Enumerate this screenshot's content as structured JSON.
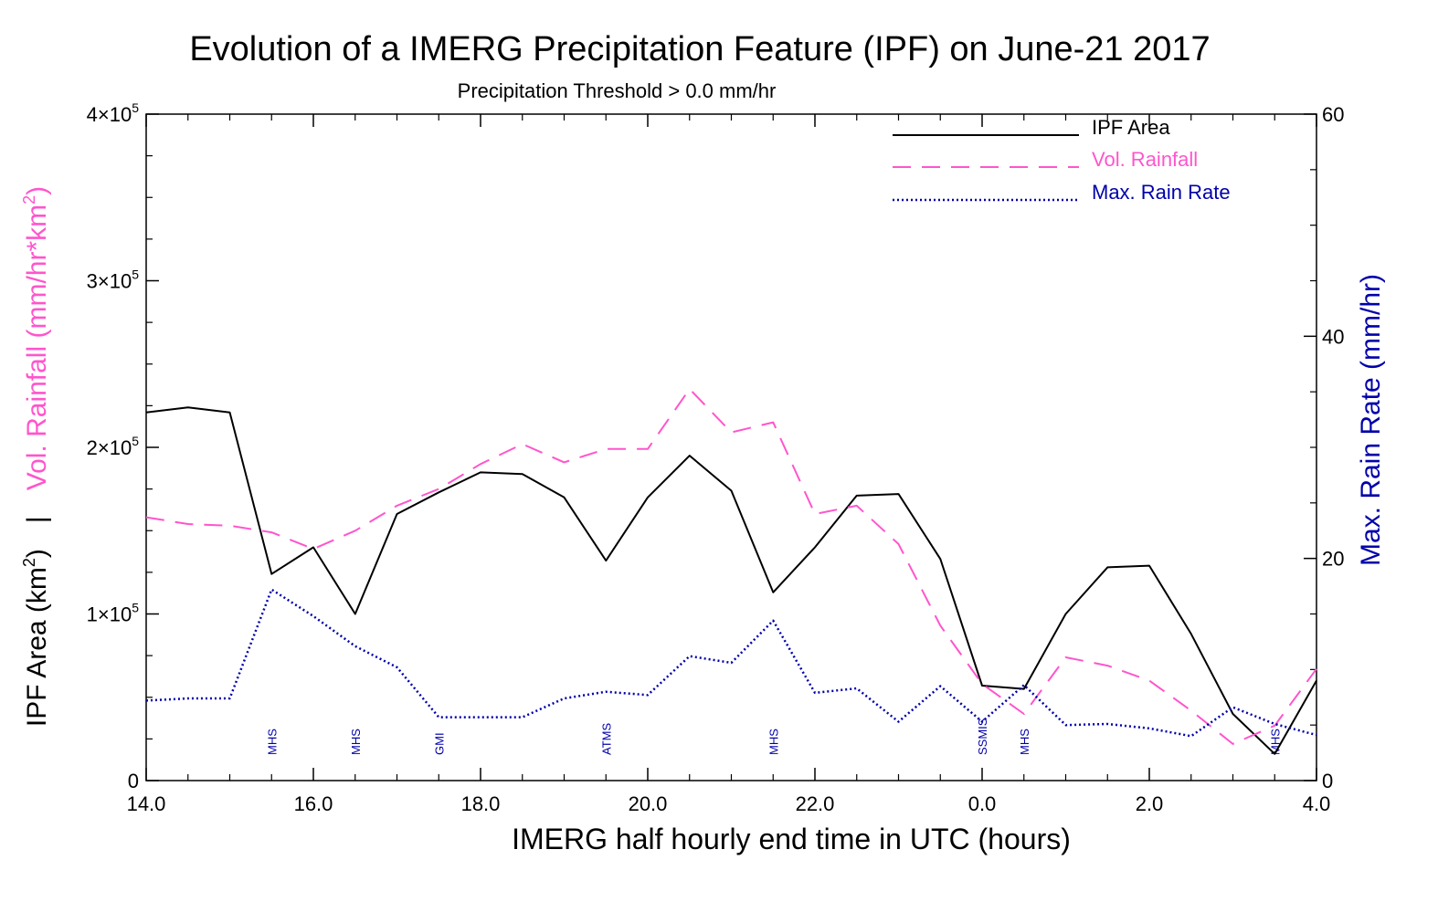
{
  "chart_data": {
    "type": "line",
    "title": "Evolution of a IMERG Precipitation Feature (IPF) on June-21 2017",
    "subtitle": "Precipitation Threshold > 0.0 mm/hr",
    "xlabel": "IMERG half hourly end time in UTC (hours)",
    "ylabel_left_part1": "IPF Area (km",
    "ylabel_left_part2": "Vol. Rainfall (mm/hr*km",
    "ylabel_left_sup": "2",
    "ylabel_left_close": ")",
    "ylabel_left_sep": "|",
    "ylabel_right": "Max. Rain Rate (mm/hr)",
    "x_tick_labels": [
      "14.0",
      "16.0",
      "18.0",
      "20.0",
      "22.0",
      "0.0",
      "2.0",
      "4.0"
    ],
    "x_ticks": [
      0,
      2,
      4,
      6,
      8,
      10,
      12,
      14
    ],
    "xlim": [
      0,
      14
    ],
    "ylim_left": [
      0,
      400000
    ],
    "ylim_right": [
      0,
      60
    ],
    "y_left_ticks": [
      {
        "value": 0,
        "label": "0",
        "exp": ""
      },
      {
        "value": 100000,
        "label": "1×10",
        "exp": "5"
      },
      {
        "value": 200000,
        "label": "2×10",
        "exp": "5"
      },
      {
        "value": 300000,
        "label": "3×10",
        "exp": "5"
      },
      {
        "value": 400000,
        "label": "4×10",
        "exp": "5"
      }
    ],
    "y_right_ticks": [
      {
        "value": 0,
        "label": "0"
      },
      {
        "value": 20,
        "label": "20"
      },
      {
        "value": 40,
        "label": "40"
      },
      {
        "value": 60,
        "label": "60"
      }
    ],
    "x": [
      0,
      0.5,
      1,
      1.5,
      2,
      2.5,
      3,
      3.5,
      4,
      4.5,
      5,
      5.5,
      6,
      6.5,
      7,
      7.5,
      8,
      8.5,
      9,
      9.5,
      10,
      10.5,
      11,
      11.5,
      12,
      12.5,
      13,
      13.5,
      14
    ],
    "series": [
      {
        "name": "IPF Area",
        "axis": "left",
        "color": "#000000",
        "dash": "solid",
        "values": [
          221000,
          224000,
          221000,
          124000,
          140000,
          100000,
          160000,
          173000,
          185000,
          184000,
          170000,
          132000,
          170000,
          195000,
          174000,
          113000,
          140000,
          171000,
          172000,
          133000,
          57000,
          55000,
          100000,
          128000,
          129000,
          88000,
          40000,
          16000,
          60000
        ]
      },
      {
        "name": "Vol. Rainfall",
        "axis": "left",
        "color": "#ff55cc",
        "dash": "dashed",
        "values": [
          158000,
          154000,
          153000,
          149000,
          139000,
          150000,
          165000,
          175000,
          190000,
          202000,
          191000,
          199000,
          199000,
          235000,
          209000,
          215000,
          160000,
          165000,
          142000,
          93000,
          58000,
          40000,
          74000,
          69000,
          60000,
          42000,
          22000,
          33000,
          67000
        ]
      },
      {
        "name": "Max. Rain Rate",
        "axis": "right",
        "color": "#0000aa",
        "dash": "dotted",
        "values": [
          7.2,
          7.4,
          7.4,
          17.2,
          14.8,
          12.1,
          10.2,
          5.7,
          5.7,
          5.7,
          7.4,
          8.0,
          7.7,
          11.2,
          10.6,
          14.4,
          7.9,
          8.3,
          5.3,
          8.5,
          5.3,
          8.6,
          5.0,
          5.1,
          4.7,
          4.0,
          6.6,
          5.1,
          4.1
        ]
      }
    ],
    "sensor_annotations": [
      {
        "x": 1.5,
        "label": "MHS"
      },
      {
        "x": 2.5,
        "label": "MHS"
      },
      {
        "x": 3.5,
        "label": "GMI"
      },
      {
        "x": 5.5,
        "label": "ATMS"
      },
      {
        "x": 7.5,
        "label": "MHS"
      },
      {
        "x": 10.0,
        "label": "SSMIS"
      },
      {
        "x": 10.5,
        "label": "MHS"
      },
      {
        "x": 13.5,
        "label": "MHS"
      }
    ],
    "annotation_color": "#0000aa",
    "legend_position": "top-right",
    "grid": false
  }
}
